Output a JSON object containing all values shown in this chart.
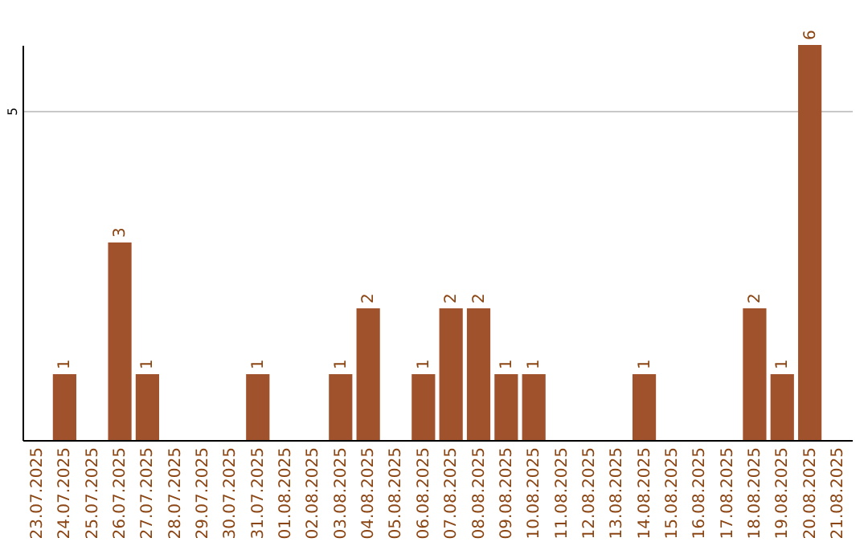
{
  "chart_data": {
    "type": "bar",
    "categories": [
      "23.07.2025",
      "24.07.2025",
      "25.07.2025",
      "26.07.2025",
      "27.07.2025",
      "28.07.2025",
      "29.07.2025",
      "30.07.2025",
      "31.07.2025",
      "01.08.2025",
      "02.08.2025",
      "03.08.2025",
      "04.08.2025",
      "05.08.2025",
      "06.08.2025",
      "07.08.2025",
      "08.08.2025",
      "09.08.2025",
      "10.08.2025",
      "11.08.2025",
      "12.08.2025",
      "13.08.2025",
      "14.08.2025",
      "15.08.2025",
      "16.08.2025",
      "17.08.2025",
      "18.08.2025",
      "19.08.2025",
      "20.08.2025",
      "21.08.2025"
    ],
    "values": [
      0,
      1,
      0,
      3,
      1,
      0,
      0,
      0,
      1,
      0,
      0,
      1,
      2,
      0,
      1,
      2,
      2,
      1,
      1,
      0,
      0,
      0,
      1,
      0,
      0,
      0,
      2,
      1,
      6,
      0
    ],
    "value_labels": [
      null,
      "1",
      null,
      "3",
      "1",
      null,
      null,
      null,
      "1",
      null,
      null,
      "1",
      "2",
      null,
      "1",
      "2",
      "2",
      "1",
      "1",
      null,
      null,
      null,
      "1",
      null,
      null,
      null,
      "2",
      "1",
      "6",
      null
    ],
    "color": "#a0522d",
    "ylim": [
      0,
      6
    ],
    "yticks": [
      5
    ],
    "grid": "y"
  }
}
